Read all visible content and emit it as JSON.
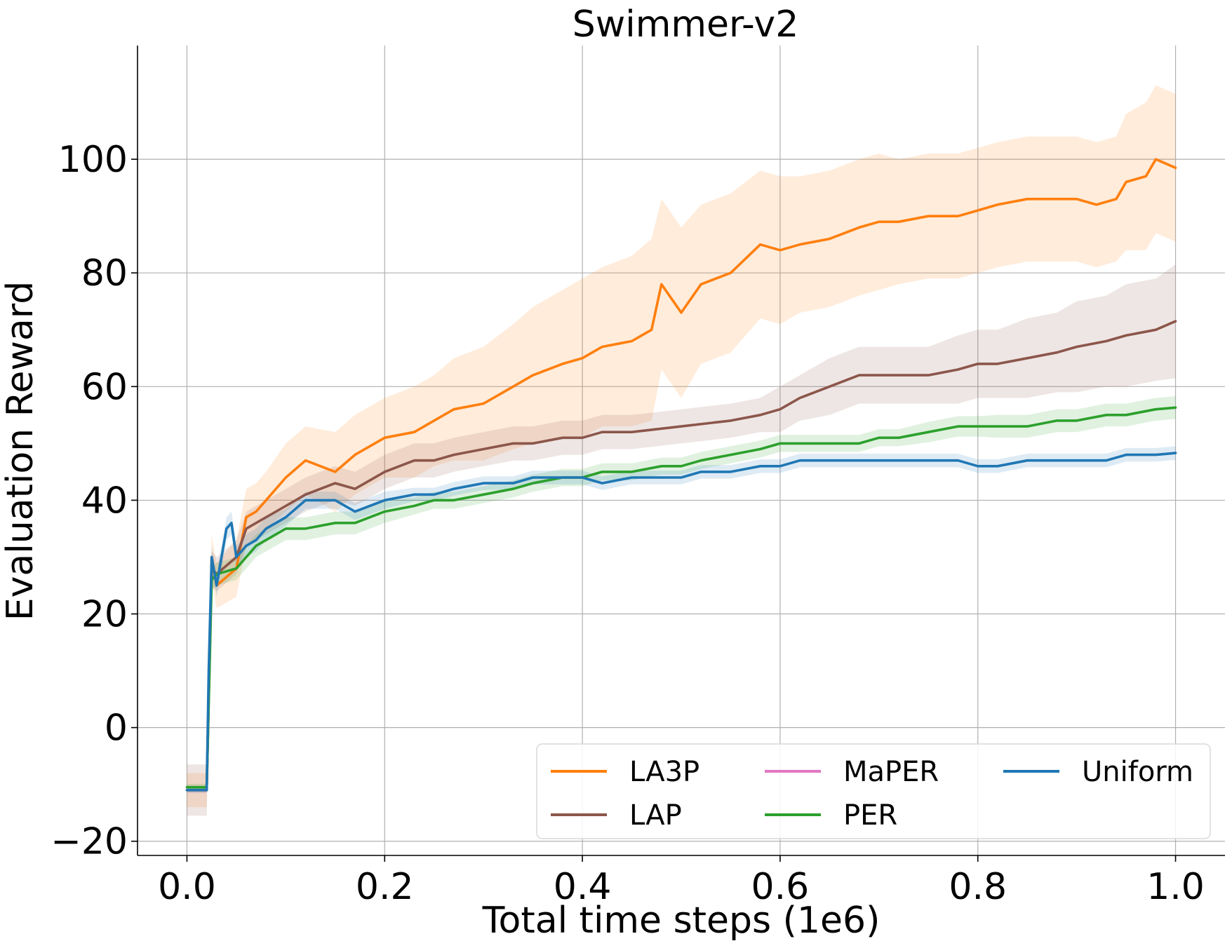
{
  "chart_data": {
    "type": "line",
    "title": "Swimmer-v2",
    "xlabel": "Total time steps (1e6)",
    "ylabel": "Evaluation Reward",
    "xlim": [
      -0.05,
      1.05
    ],
    "ylim": [
      -22.5,
      120
    ],
    "xticks": [
      0.0,
      0.2,
      0.4,
      0.6,
      0.8,
      1.0
    ],
    "xtick_labels": [
      "0.0",
      "0.2",
      "0.4",
      "0.6",
      "0.8",
      "1.0"
    ],
    "yticks": [
      -20,
      0,
      20,
      40,
      60,
      80,
      100
    ],
    "ytick_labels": [
      "−20",
      "0",
      "20",
      "40",
      "60",
      "80",
      "100"
    ],
    "grid": true,
    "legend": {
      "position": "lower-right",
      "columns": 3,
      "entries": [
        "LA3P",
        "MaPER",
        "Uniform",
        "LAP",
        "PER"
      ]
    },
    "series": [
      {
        "name": "LA3P",
        "color": "#ff7f0e",
        "x": [
          0.0,
          0.02,
          0.025,
          0.03,
          0.05,
          0.06,
          0.07,
          0.08,
          0.1,
          0.12,
          0.15,
          0.17,
          0.2,
          0.23,
          0.25,
          0.27,
          0.3,
          0.33,
          0.35,
          0.38,
          0.4,
          0.42,
          0.45,
          0.47,
          0.48,
          0.5,
          0.52,
          0.55,
          0.58,
          0.6,
          0.62,
          0.65,
          0.68,
          0.7,
          0.72,
          0.75,
          0.78,
          0.8,
          0.82,
          0.85,
          0.88,
          0.9,
          0.92,
          0.94,
          0.95,
          0.97,
          0.98,
          1.0
        ],
        "y": [
          -11,
          -11,
          30,
          25,
          28,
          37,
          38,
          40,
          44,
          47,
          45,
          48,
          51,
          52,
          54,
          56,
          57,
          60,
          62,
          64,
          65,
          67,
          68,
          70,
          78,
          73,
          78,
          80,
          85,
          84,
          85,
          86,
          88,
          89,
          89,
          90,
          90,
          91,
          92,
          93,
          93,
          93,
          92,
          93,
          96,
          97,
          100,
          98.5
        ],
        "band": [
          3,
          3,
          4,
          4,
          5,
          5,
          5,
          5,
          6,
          6,
          7,
          7,
          7,
          8,
          8,
          9,
          10,
          11,
          12,
          13,
          14,
          14,
          15,
          16,
          15,
          15,
          14,
          14,
          13,
          13,
          12,
          12,
          12,
          12,
          11,
          11,
          11,
          11,
          11,
          11,
          11,
          11,
          11,
          11,
          12,
          13,
          13,
          13
        ]
      },
      {
        "name": "LAP",
        "color": "#8c564b",
        "x": [
          0.0,
          0.02,
          0.025,
          0.03,
          0.05,
          0.06,
          0.07,
          0.08,
          0.1,
          0.12,
          0.15,
          0.17,
          0.2,
          0.23,
          0.25,
          0.27,
          0.3,
          0.33,
          0.35,
          0.38,
          0.4,
          0.42,
          0.45,
          0.5,
          0.55,
          0.58,
          0.6,
          0.62,
          0.65,
          0.68,
          0.7,
          0.72,
          0.75,
          0.78,
          0.8,
          0.82,
          0.85,
          0.88,
          0.9,
          0.93,
          0.95,
          0.98,
          1.0
        ],
        "y": [
          -11,
          -11,
          28,
          27,
          30,
          35,
          36,
          37,
          39,
          41,
          43,
          42,
          45,
          47,
          47,
          48,
          49,
          50,
          50,
          51,
          51,
          52,
          52,
          53,
          54,
          55,
          56,
          58,
          60,
          62,
          62,
          62,
          62,
          63,
          64,
          64,
          65,
          66,
          67,
          68,
          69,
          70,
          71.5
        ],
        "band": [
          4.5,
          4.5,
          3,
          3,
          3,
          3,
          3,
          3,
          3,
          3,
          3,
          3,
          3,
          3,
          3,
          3,
          3,
          3,
          3,
          3,
          3,
          3,
          3,
          3,
          3,
          3,
          4,
          4,
          5,
          5,
          5,
          5,
          5,
          6,
          6,
          6,
          7,
          7,
          8,
          8,
          9,
          9,
          10
        ]
      },
      {
        "name": "MaPER",
        "color": "#e377c2",
        "x": [
          0.0,
          0.02
        ],
        "y": [
          -11,
          -11
        ],
        "band": [
          0.5,
          0.5
        ]
      },
      {
        "name": "PER",
        "color": "#2ca02c",
        "x": [
          0.0,
          0.02,
          0.025,
          0.03,
          0.05,
          0.06,
          0.07,
          0.08,
          0.1,
          0.12,
          0.15,
          0.17,
          0.2,
          0.23,
          0.25,
          0.27,
          0.3,
          0.33,
          0.35,
          0.38,
          0.4,
          0.42,
          0.45,
          0.48,
          0.5,
          0.52,
          0.55,
          0.58,
          0.6,
          0.62,
          0.65,
          0.68,
          0.7,
          0.72,
          0.75,
          0.78,
          0.8,
          0.82,
          0.85,
          0.88,
          0.9,
          0.93,
          0.95,
          0.98,
          1.0
        ],
        "y": [
          -10.5,
          -10.5,
          26,
          27,
          28,
          30,
          32,
          33,
          35,
          35,
          36,
          36,
          38,
          39,
          40,
          40,
          41,
          42,
          43,
          44,
          44,
          45,
          45,
          46,
          46,
          47,
          48,
          49,
          50,
          50,
          50,
          50,
          51,
          51,
          52,
          53,
          53,
          53,
          53,
          54,
          54,
          55,
          55,
          56,
          56.3
        ],
        "band": [
          0.6,
          0.6,
          2,
          2,
          2,
          2,
          2,
          2,
          2,
          2,
          2,
          2,
          2,
          1.5,
          1.5,
          1.5,
          1.5,
          1.5,
          1.5,
          1.5,
          1.5,
          1.5,
          1.5,
          1.5,
          1.5,
          1.5,
          1.5,
          1.5,
          1.5,
          1.5,
          1.5,
          1.5,
          1.5,
          1.5,
          1.8,
          1.8,
          1.8,
          2,
          2,
          2,
          2,
          2,
          2,
          2,
          2
        ]
      },
      {
        "name": "Uniform",
        "color": "#1f77b4",
        "x": [
          0.0,
          0.02,
          0.022,
          0.025,
          0.03,
          0.04,
          0.045,
          0.05,
          0.06,
          0.07,
          0.08,
          0.1,
          0.12,
          0.15,
          0.17,
          0.2,
          0.23,
          0.25,
          0.27,
          0.3,
          0.33,
          0.35,
          0.38,
          0.4,
          0.42,
          0.45,
          0.48,
          0.5,
          0.52,
          0.55,
          0.58,
          0.6,
          0.62,
          0.65,
          0.68,
          0.7,
          0.72,
          0.75,
          0.78,
          0.8,
          0.82,
          0.85,
          0.88,
          0.9,
          0.93,
          0.95,
          0.98,
          1.0
        ],
        "y": [
          -11,
          -11,
          10,
          30,
          25,
          35,
          36,
          30,
          32,
          33,
          35,
          37,
          40,
          40,
          38,
          40,
          41,
          41,
          42,
          43,
          43,
          44,
          44,
          44,
          43,
          44,
          44,
          44,
          45,
          45,
          46,
          46,
          47,
          47,
          47,
          47,
          47,
          47,
          47,
          46,
          46,
          47,
          47,
          47,
          47,
          48,
          48,
          48.3
        ],
        "band": [
          0.5,
          0.5,
          2,
          2,
          2,
          2,
          2,
          2,
          2,
          2,
          2,
          1.5,
          1.5,
          1.5,
          1.5,
          1.5,
          1.2,
          1.2,
          1.2,
          1.2,
          1.2,
          1.2,
          1.2,
          1.2,
          1.2,
          1.2,
          1.2,
          1.2,
          1.2,
          1.2,
          1.2,
          1.2,
          1.2,
          1.2,
          1.2,
          1.2,
          1.2,
          1.2,
          1.2,
          1.2,
          1.2,
          1.2,
          1.2,
          1.2,
          1.2,
          1.2,
          1.2,
          1.2
        ]
      }
    ]
  }
}
